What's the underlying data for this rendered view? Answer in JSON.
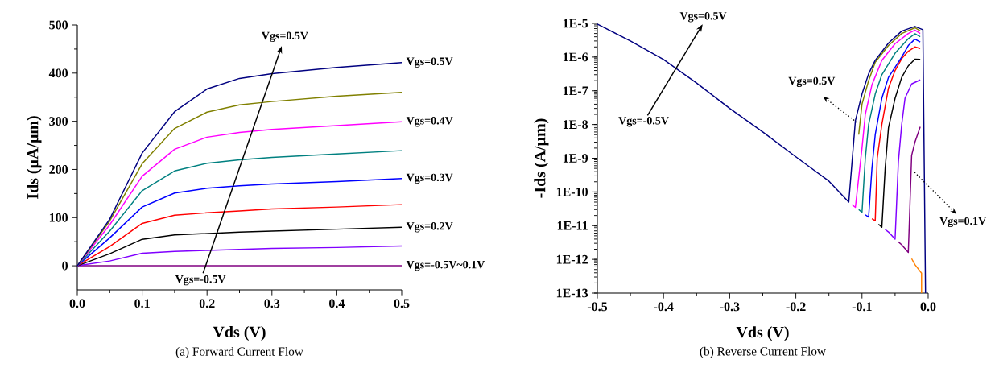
{
  "chart_data": [
    {
      "type": "line",
      "xlabel": "Vds (V)",
      "ylabel": "Ids (μA/μm)",
      "x": [
        0,
        0.05,
        0.1,
        0.15,
        0.2,
        0.25,
        0.3,
        0.4,
        0.5
      ],
      "series": [
        {
          "name": "Vgs=-0.5V~0.1V",
          "color": "#800080",
          "values": [
            0,
            0,
            0,
            0,
            0,
            0,
            0,
            0,
            0
          ]
        },
        {
          "color": "#8000ff",
          "values": [
            0,
            10,
            26,
            30,
            32,
            34,
            36,
            38,
            41
          ]
        },
        {
          "name": "Vgs=0.2V",
          "color": "#000000",
          "values": [
            0,
            25,
            55,
            64,
            67,
            70,
            72,
            76,
            80
          ]
        },
        {
          "color": "#ff0000",
          "values": [
            0,
            40,
            88,
            105,
            110,
            114,
            118,
            122,
            127
          ]
        },
        {
          "name": "Vgs=0.3V",
          "color": "#0000ff",
          "values": [
            0,
            58,
            122,
            151,
            161,
            166,
            170,
            175,
            181
          ]
        },
        {
          "color": "#008080",
          "values": [
            0,
            72,
            156,
            197,
            213,
            220,
            225,
            232,
            239
          ]
        },
        {
          "name": "Vgs=0.4V",
          "color": "#ff00ff",
          "values": [
            0,
            85,
            186,
            242,
            267,
            277,
            283,
            291,
            299
          ]
        },
        {
          "color": "#808000",
          "values": [
            0,
            93,
            212,
            285,
            319,
            334,
            341,
            352,
            360
          ]
        },
        {
          "name": "Vgs=0.5V",
          "color": "#000080",
          "values": [
            0,
            97,
            234,
            320,
            367,
            389,
            399,
            412,
            422
          ]
        }
      ],
      "xlim": [
        0,
        0.5
      ],
      "ylim": [
        -50,
        500
      ],
      "xticks": [
        {
          "value": 0,
          "label": "0.0"
        },
        0.1,
        0.2,
        0.3,
        0.4,
        0.5
      ],
      "yticks": [
        0,
        100,
        200,
        300,
        400,
        500
      ],
      "annotations": [
        "Vgs=-0.5V",
        "Vgs=0.5V",
        "(a) Forward Current Flow"
      ]
    },
    {
      "type": "line",
      "xlabel": "Vds (V)",
      "ylabel": "-Ids (A/μm)",
      "log": "y",
      "series": [
        {
          "color": "#ff8000",
          "x": [
            -0.025,
            -0.02,
            -0.01,
            -0.01
          ],
          "values": [
            1.05e-12,
            7e-13,
            3.9e-13,
            1e-13
          ]
        },
        {
          "color": "#800080",
          "x": [
            -0.045,
            -0.04,
            -0.03,
            -0.025,
            -0.02,
            -0.012
          ],
          "values": [
            3.3e-12,
            2.7e-12,
            1.6e-12,
            1.2e-09,
            3e-09,
            8.5e-09
          ]
        },
        {
          "color": "#8000ff",
          "x": [
            -0.065,
            -0.06,
            -0.05,
            -0.045,
            -0.04,
            -0.035,
            -0.025,
            -0.012
          ],
          "values": [
            7.7e-12,
            6.5e-12,
            4e-12,
            8e-10,
            1e-08,
            6e-08,
            1.6e-07,
            2.1e-07
          ]
        },
        {
          "color": "#000000",
          "x": [
            -0.075,
            -0.07,
            -0.065,
            -0.06,
            -0.05,
            -0.04,
            -0.03,
            -0.02,
            -0.012
          ],
          "values": [
            1.1e-11,
            9e-12,
            5e-10,
            8e-09,
            6e-08,
            2.5e-07,
            5.5e-07,
            8.7e-07,
            8.5e-07
          ]
        },
        {
          "color": "#ff0000",
          "x": [
            -0.085,
            -0.08,
            -0.077,
            -0.07,
            -0.06,
            -0.05,
            -0.04,
            -0.03,
            -0.02,
            -0.012
          ],
          "values": [
            1.6e-11,
            1.4e-11,
            1e-09,
            1e-08,
            1.2e-07,
            4e-07,
            9e-07,
            1.5e-06,
            2e-06,
            1.8e-06
          ]
        },
        {
          "color": "#0000ff",
          "x": [
            -0.095,
            -0.09,
            -0.085,
            -0.08,
            -0.07,
            -0.06,
            -0.04,
            -0.03,
            -0.02,
            -0.012
          ],
          "values": [
            2.1e-11,
            1.8e-11,
            5e-10,
            5e-09,
            6e-08,
            2.5e-07,
            1e-06,
            2.2e-06,
            3.4e-06,
            2.8e-06
          ]
        },
        {
          "color": "#008080",
          "x": [
            -0.105,
            -0.1,
            -0.095,
            -0.09,
            -0.08,
            -0.07,
            -0.05,
            -0.03,
            -0.02,
            -0.012
          ],
          "values": [
            3e-11,
            2.5e-11,
            1e-09,
            1e-08,
            8e-08,
            3e-07,
            1.3e-06,
            3.5e-06,
            4.9e-06,
            4e-06
          ]
        },
        {
          "color": "#ff00ff",
          "x": [
            -0.115,
            -0.11,
            -0.1,
            -0.095,
            -0.085,
            -0.07,
            -0.05,
            -0.03,
            -0.02,
            -0.012
          ],
          "values": [
            4.2e-11,
            3.5e-11,
            2e-09,
            2e-08,
            1.5e-07,
            8e-07,
            2.5e-06,
            5e-06,
            6.3e-06,
            5e-06
          ]
        },
        {
          "color": "#808000",
          "x": [
            -0.105,
            -0.1,
            -0.09,
            -0.08,
            -0.06,
            -0.04,
            -0.02,
            -0.012
          ],
          "values": [
            5e-09,
            4e-08,
            2e-07,
            7e-07,
            2.2e-06,
            5e-06,
            7.4e-06,
            6e-06
          ]
        },
        {
          "color": "#000080",
          "x": [
            -0.5,
            -0.45,
            -0.4,
            -0.35,
            -0.3,
            -0.25,
            -0.2,
            -0.15,
            -0.12,
            -0.11,
            -0.1,
            -0.09,
            -0.08,
            -0.06,
            -0.04,
            -0.02,
            -0.008,
            -0.004
          ],
          "values": [
            9.5e-06,
            3e-06,
            8.5e-07,
            1.7e-07,
            3e-08,
            6e-09,
            1.1e-09,
            2.1e-10,
            5e-11,
            1.3e-08,
            8e-08,
            3.2e-07,
            8e-07,
            2.6e-06,
            5.9e-06,
            8.1e-06,
            6.5e-06,
            1e-13
          ]
        }
      ],
      "xlim": [
        -0.5,
        0
      ],
      "ylim": [
        1e-13,
        1e-05
      ],
      "xticks": [
        -0.5,
        -0.4,
        -0.3,
        -0.2,
        -0.1,
        {
          "value": 0,
          "label": "0.0"
        }
      ],
      "yticks": [
        {
          "value": 1e-13,
          "label": "1E-13"
        },
        {
          "value": 1e-12,
          "label": "1E-12"
        },
        {
          "value": 1e-11,
          "label": "1E-11"
        },
        {
          "value": 1e-10,
          "label": "1E-10"
        },
        {
          "value": 1e-09,
          "label": "1E-9"
        },
        {
          "value": 1e-08,
          "label": "1E-8"
        },
        {
          "value": 1e-07,
          "label": "1E-7"
        },
        {
          "value": 1e-06,
          "label": "1E-6"
        },
        {
          "value": 1e-05,
          "label": "1E-5"
        }
      ],
      "annotations": [
        "Vgs=0.5V",
        "Vgs=-0.5V",
        "Vgs=0.5V",
        "Vgs=0.1V",
        "(b) Reverse Current Flow"
      ]
    }
  ]
}
